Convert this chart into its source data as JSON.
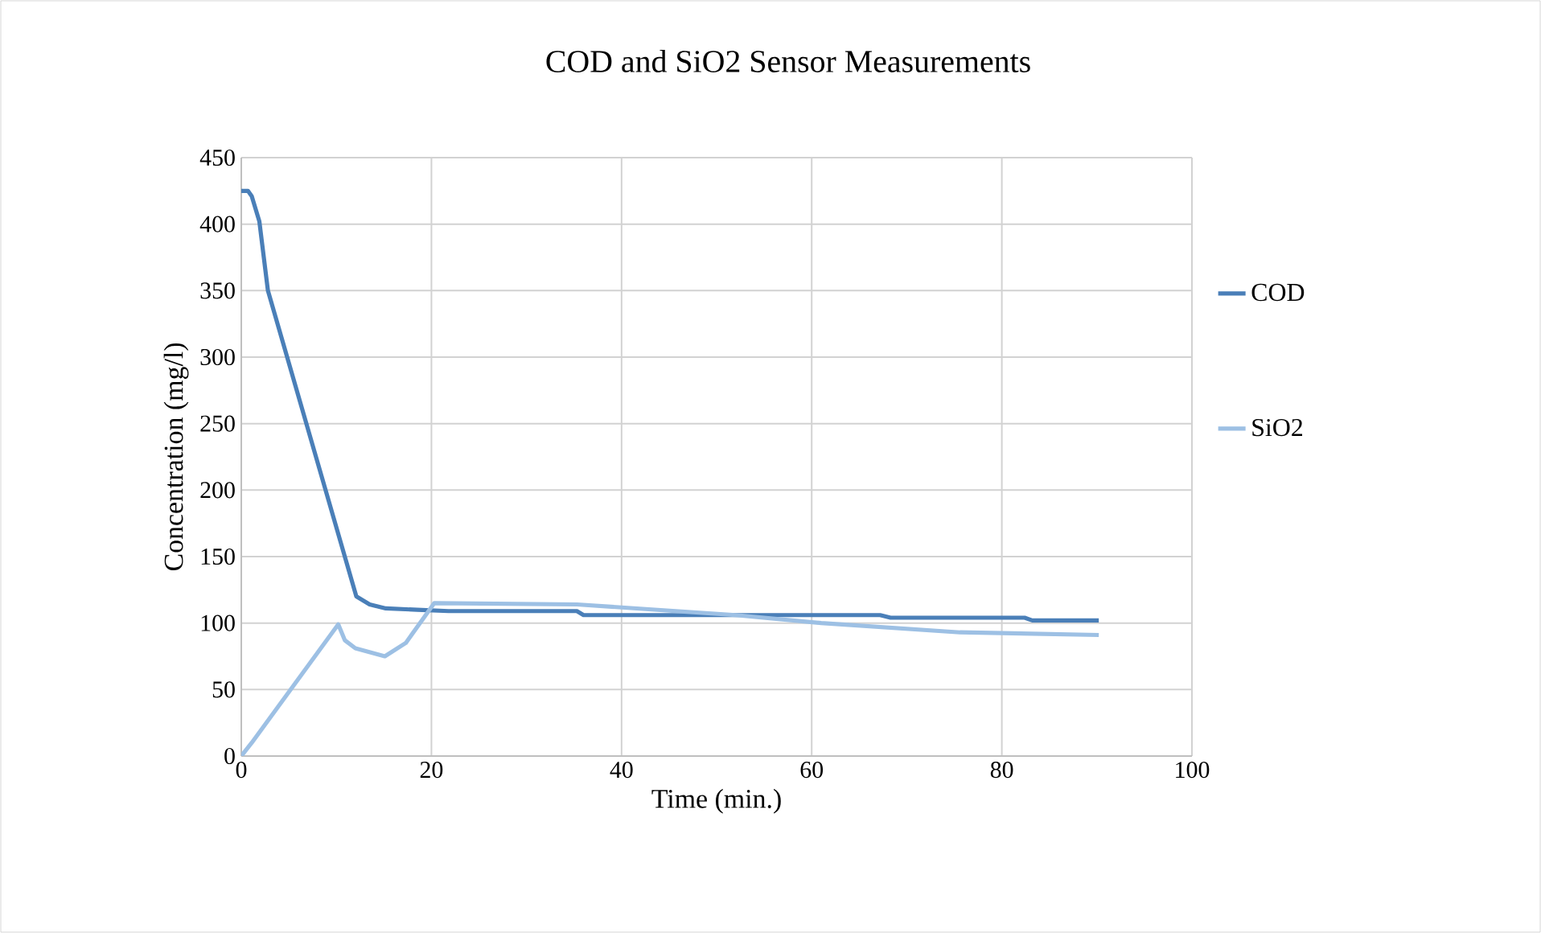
{
  "chart_data": {
    "type": "line",
    "title": "COD and SiO2 Sensor Measurements",
    "xlabel": "Time (min.)",
    "ylabel": "Concentration (mg/l)",
    "xlim": [
      0,
      100
    ],
    "xticks": [
      0,
      20,
      40,
      60,
      80,
      100
    ],
    "ylim": [
      0,
      450
    ],
    "yticks": [
      0,
      50,
      100,
      150,
      200,
      250,
      300,
      350,
      400,
      450
    ],
    "grid": true,
    "legend": "right",
    "marker": "none",
    "line_style": "solid",
    "series": [
      {
        "name": "COD",
        "color": "#4a7fb8",
        "x": [
          0,
          0.7,
          1.1,
          1.9,
          2.8,
          12.1,
          13.5,
          15.2,
          18.5,
          21.8,
          35.3,
          36,
          52,
          67.2,
          68.3,
          82.4,
          83.2,
          90.2
        ],
        "values": [
          425,
          425,
          421,
          402,
          350,
          120,
          114,
          111,
          110,
          109,
          109,
          106,
          106,
          106,
          104,
          104,
          102,
          102
        ]
      },
      {
        "name": "SiO2",
        "color": "#9dc0e4",
        "x": [
          0,
          1.1,
          10.2,
          10.9,
          12,
          15.1,
          17.3,
          20.3,
          35.3,
          52,
          61,
          75.6,
          90.2
        ],
        "values": [
          0,
          10,
          99,
          87,
          81,
          75,
          85,
          115,
          114,
          106,
          100,
          93,
          91
        ]
      }
    ]
  }
}
